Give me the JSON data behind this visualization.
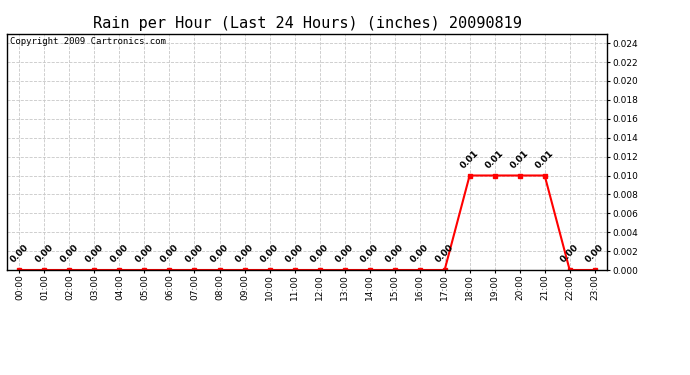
{
  "title": "Rain per Hour (Last 24 Hours) (inches) 20090819",
  "copyright_text": "Copyright 2009 Cartronics.com",
  "hours": [
    0,
    1,
    2,
    3,
    4,
    5,
    6,
    7,
    8,
    9,
    10,
    11,
    12,
    13,
    14,
    15,
    16,
    17,
    18,
    19,
    20,
    21,
    22,
    23
  ],
  "values": [
    0.0,
    0.0,
    0.0,
    0.0,
    0.0,
    0.0,
    0.0,
    0.0,
    0.0,
    0.0,
    0.0,
    0.0,
    0.0,
    0.0,
    0.0,
    0.0,
    0.0,
    0.0,
    0.01,
    0.01,
    0.01,
    0.01,
    0.0,
    0.0
  ],
  "ylim": [
    0.0,
    0.025
  ],
  "yticks": [
    0.0,
    0.002,
    0.004,
    0.006,
    0.008,
    0.01,
    0.012,
    0.014,
    0.016,
    0.018,
    0.02,
    0.022,
    0.024
  ],
  "line_color": "#ff0000",
  "marker_color": "#ff0000",
  "grid_color": "#c8c8c8",
  "bg_color": "#ffffff",
  "title_fontsize": 11,
  "copyright_fontsize": 6.5,
  "tick_label_fontsize": 6.5,
  "annotation_fontsize": 6.5,
  "annotation_rotation": 45
}
